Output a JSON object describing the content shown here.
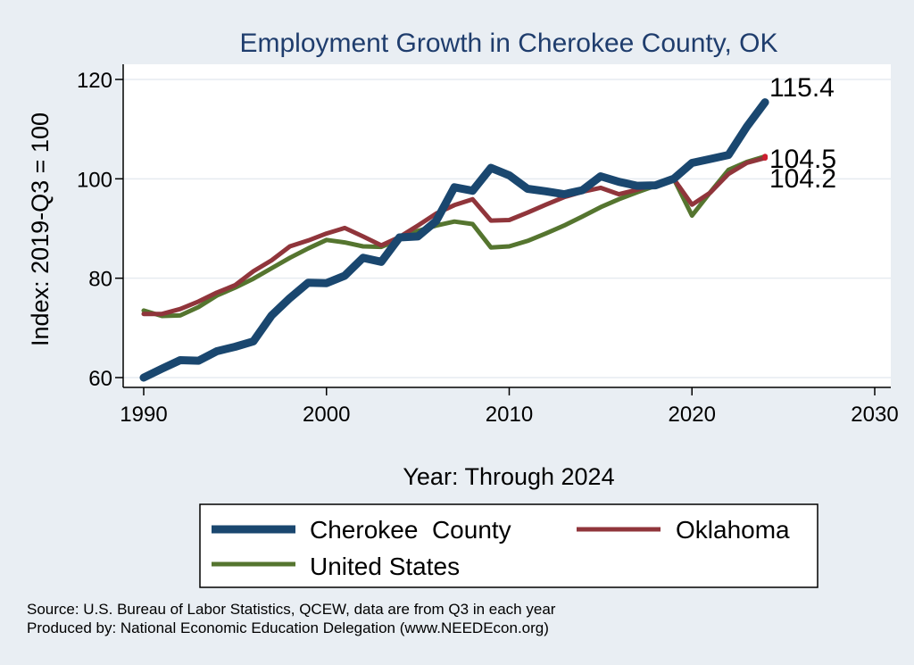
{
  "chart_data": {
    "type": "line",
    "title": "Employment Growth in Cherokee County, OK",
    "xlabel": "Year: Through 2024",
    "ylabel": "Index: 2019-Q3 = 100",
    "xlim": [
      1990,
      2030
    ],
    "ylim": [
      58,
      122
    ],
    "xticks": [
      1990,
      2000,
      2010,
      2020,
      2030
    ],
    "yticks": [
      60,
      80,
      100,
      120
    ],
    "grid": true,
    "legend_position": "bottom",
    "x": [
      1990,
      1991,
      1992,
      1993,
      1994,
      1995,
      1996,
      1997,
      1998,
      1999,
      2000,
      2001,
      2002,
      2003,
      2004,
      2005,
      2006,
      2007,
      2008,
      2009,
      2010,
      2011,
      2012,
      2013,
      2014,
      2015,
      2016,
      2017,
      2018,
      2019,
      2020,
      2021,
      2022,
      2023,
      2024
    ],
    "series": [
      {
        "name": "Cherokee  County",
        "color": "#1a476f",
        "values": [
          60.0,
          61.8,
          63.5,
          63.4,
          65.3,
          66.2,
          67.3,
          72.5,
          76.0,
          79.1,
          79.0,
          80.5,
          84.1,
          83.3,
          88.2,
          88.4,
          91.5,
          98.3,
          97.6,
          102.2,
          100.7,
          98.0,
          97.5,
          96.9,
          97.7,
          100.5,
          99.4,
          98.6,
          98.7,
          100.0,
          103.2,
          104.0,
          104.8,
          110.5,
          115.4
        ],
        "end_label": "115.4"
      },
      {
        "name": "Oklahoma",
        "color": "#90353b",
        "values": [
          72.8,
          72.8,
          73.8,
          75.3,
          77.1,
          78.6,
          81.4,
          83.6,
          86.4,
          87.6,
          89.0,
          90.1,
          88.4,
          86.6,
          88.3,
          90.6,
          93.0,
          94.7,
          95.9,
          91.6,
          91.7,
          93.2,
          94.8,
          96.3,
          97.4,
          98.2,
          96.9,
          97.8,
          99.0,
          100.0,
          94.8,
          97.2,
          101.0,
          103.2,
          104.2
        ],
        "end_label": "104.2"
      },
      {
        "name": "United States",
        "color": "#55752f",
        "values": [
          73.5,
          72.4,
          72.5,
          74.2,
          76.5,
          78.1,
          79.9,
          82.0,
          84.1,
          86.0,
          87.7,
          87.2,
          86.4,
          86.3,
          87.8,
          89.5,
          90.6,
          91.4,
          90.9,
          86.2,
          86.4,
          87.5,
          89.0,
          90.6,
          92.4,
          94.3,
          95.9,
          97.3,
          98.6,
          100.0,
          92.6,
          97.3,
          101.8,
          103.4,
          104.5
        ],
        "end_label": "104.5"
      }
    ]
  },
  "footer": {
    "source": "Source: U.S. Bureau of Labor Statistics, QCEW, data are from Q3 in each year",
    "producer": "Produced by: National Economic Education Delegation (www.NEEDEcon.org)"
  }
}
